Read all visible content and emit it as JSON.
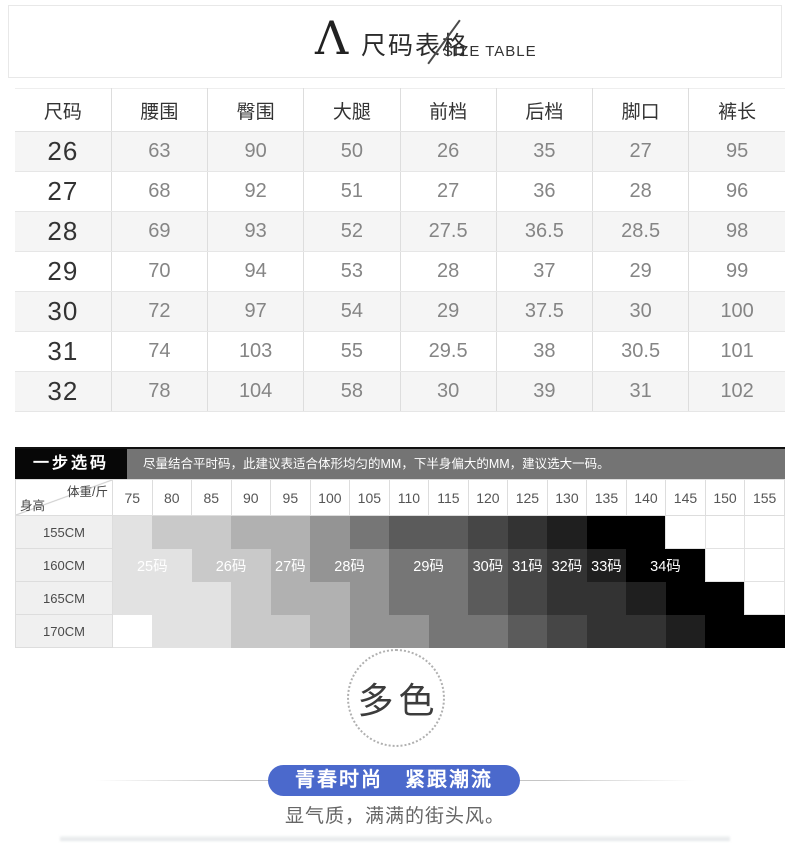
{
  "header": {
    "logo_glyph": "Λ",
    "title_cn": "尺码表格",
    "title_en": "SIZE TABLE"
  },
  "size_table": {
    "columns": [
      "尺码",
      "腰围",
      "臀围",
      "大腿",
      "前档",
      "后档",
      "脚口",
      "裤长"
    ],
    "rows": [
      [
        "26",
        "63",
        "90",
        "50",
        "26",
        "35",
        "27",
        "95"
      ],
      [
        "27",
        "68",
        "92",
        "51",
        "27",
        "36",
        "28",
        "96"
      ],
      [
        "28",
        "69",
        "93",
        "52",
        "27.5",
        "36.5",
        "28.5",
        "98"
      ],
      [
        "29",
        "70",
        "94",
        "53",
        "28",
        "37",
        "29",
        "99"
      ],
      [
        "30",
        "72",
        "97",
        "54",
        "29",
        "37.5",
        "30",
        "100"
      ],
      [
        "31",
        "74",
        "103",
        "55",
        "29.5",
        "38",
        "30.5",
        "101"
      ],
      [
        "32",
        "78",
        "104",
        "58",
        "30",
        "39",
        "31",
        "102"
      ]
    ]
  },
  "size_picker": {
    "badge": "一步选码",
    "note": "尽量结合平时码，此建议表适合体形均匀的MM，下半身偏大的MM，建议选大一码。",
    "corner_top": "体重/斤",
    "corner_bottom": "身高",
    "weights": [
      "75",
      "80",
      "85",
      "90",
      "95",
      "100",
      "105",
      "110",
      "115",
      "120",
      "125",
      "130",
      "135",
      "140",
      "145",
      "150",
      "155"
    ],
    "heights": [
      "155CM",
      "160CM",
      "165CM",
      "170CM"
    ],
    "size_labels": [
      "25码",
      "26码",
      "27码",
      "28码",
      "29码",
      "30码",
      "31码",
      "32码",
      "33码",
      "34码"
    ],
    "label_row_index": 1,
    "band_colors": [
      "#e2e2e2",
      "#c9c9c9",
      "#b1b1b1",
      "#949494",
      "#767676",
      "#5b5b5b",
      "#464646",
      "#333333",
      "#1f1f1f",
      "#000000"
    ],
    "grid": [
      [
        0,
        1,
        1,
        2,
        2,
        3,
        4,
        5,
        5,
        6,
        7,
        8,
        9,
        9,
        null,
        null,
        null
      ],
      [
        0,
        0,
        1,
        1,
        2,
        3,
        3,
        4,
        4,
        5,
        6,
        7,
        8,
        9,
        9,
        null,
        null
      ],
      [
        0,
        0,
        0,
        1,
        2,
        2,
        3,
        4,
        4,
        5,
        6,
        7,
        7,
        8,
        9,
        9,
        null
      ],
      [
        null,
        0,
        0,
        1,
        1,
        2,
        3,
        3,
        4,
        4,
        5,
        6,
        7,
        7,
        8,
        9,
        9
      ]
    ]
  },
  "color_badge": {
    "text": "多色"
  },
  "slogan": {
    "text": "青春时尚　紧跟潮流",
    "bg_color": "#4b69cc"
  },
  "tagline": "显气质，满满的街头风。"
}
